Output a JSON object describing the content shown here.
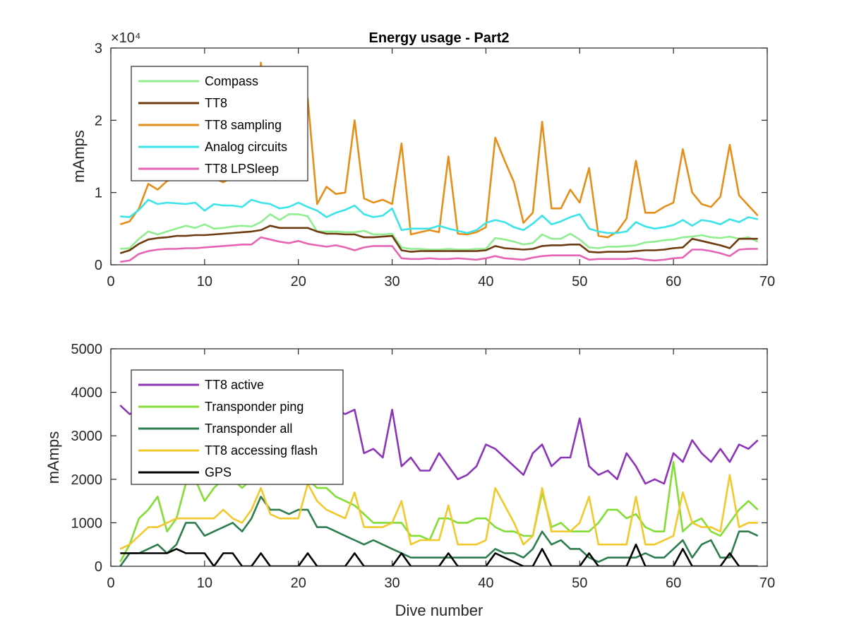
{
  "chart_data": [
    {
      "type": "line",
      "title": "Energy usage - Part2",
      "xlabel": "",
      "ylabel": "mAmps",
      "xlim": [
        0,
        70
      ],
      "ylim": [
        0,
        30000
      ],
      "exponent_label": "×10⁴",
      "xticks": [
        0,
        10,
        20,
        30,
        40,
        50,
        60,
        70
      ],
      "yticks": [
        0,
        10000,
        20000,
        30000
      ],
      "ytick_labels": [
        "0",
        "1",
        "2",
        "3"
      ],
      "grid": false,
      "legend_position": "top-left",
      "x": [
        1,
        2,
        3,
        4,
        5,
        6,
        7,
        8,
        9,
        10,
        11,
        12,
        13,
        14,
        15,
        16,
        17,
        18,
        19,
        20,
        21,
        22,
        23,
        24,
        25,
        26,
        27,
        28,
        29,
        30,
        31,
        32,
        33,
        34,
        35,
        36,
        37,
        38,
        39,
        40,
        41,
        42,
        43,
        44,
        45,
        46,
        47,
        48,
        49,
        50,
        51,
        52,
        53,
        54,
        55,
        56,
        57,
        58,
        59,
        60,
        61,
        62,
        63,
        64,
        65,
        66,
        67,
        68,
        69
      ],
      "series": [
        {
          "name": "Compass",
          "color": "#90ee90",
          "values": [
            2200,
            2300,
            3600,
            4600,
            4200,
            4600,
            5000,
            5400,
            5100,
            5600,
            5000,
            5100,
            5300,
            5400,
            5300,
            5900,
            7000,
            6200,
            7000,
            7000,
            6700,
            4600,
            4600,
            4600,
            4500,
            4500,
            4700,
            4200,
            4200,
            4300,
            2400,
            2200,
            2200,
            2100,
            2100,
            2200,
            2100,
            2100,
            2200,
            2200,
            3700,
            3500,
            3200,
            2800,
            3000,
            4200,
            3600,
            3600,
            4300,
            3500,
            2400,
            2300,
            2500,
            2500,
            2600,
            2700,
            3100,
            3200,
            3400,
            3500,
            3800,
            3900,
            4100,
            3800,
            3700,
            3900,
            3600,
            3800,
            3200
          ]
        },
        {
          "name": "TT8",
          "color": "#6e3b10",
          "values": [
            1600,
            2000,
            2900,
            3500,
            3700,
            3800,
            4000,
            4000,
            4100,
            4100,
            4200,
            4300,
            4400,
            4500,
            4600,
            4800,
            5400,
            5100,
            5100,
            5100,
            5100,
            4600,
            4300,
            4300,
            4200,
            4200,
            3800,
            3800,
            3900,
            4000,
            2000,
            1800,
            1900,
            1900,
            1900,
            1900,
            1900,
            1900,
            1900,
            2000,
            2600,
            2300,
            2200,
            2100,
            2200,
            2600,
            2700,
            2700,
            2800,
            2800,
            1800,
            1700,
            1800,
            1800,
            1800,
            1900,
            2000,
            2000,
            2100,
            2300,
            2400,
            3600,
            3300,
            3000,
            2700,
            2300,
            3600,
            3600,
            3600
          ]
        },
        {
          "name": "TT8 sampling",
          "color": "#e58e1a",
          "values": [
            5600,
            6000,
            7800,
            11200,
            10400,
            11600,
            12000,
            13200,
            12800,
            13000,
            12000,
            11400,
            12200,
            13000,
            12400,
            28000,
            16400,
            14800,
            15400,
            16000,
            23000,
            8400,
            10800,
            9800,
            10000,
            20000,
            9200,
            8600,
            9000,
            8400,
            16800,
            4200,
            4500,
            4800,
            4500,
            15000,
            4300,
            4200,
            4500,
            5200,
            17600,
            14400,
            11400,
            5800,
            7200,
            19800,
            7800,
            7800,
            10400,
            8600,
            13400,
            4000,
            3800,
            4600,
            6400,
            14400,
            7200,
            7200,
            8000,
            8600,
            16000,
            10000,
            8400,
            8000,
            9400,
            16600,
            9600,
            8200,
            6800
          ]
        },
        {
          "name": "Analog circuits",
          "color": "#3ce3e9",
          "values": [
            6700,
            6600,
            7600,
            9000,
            8400,
            8600,
            8500,
            8400,
            8600,
            7500,
            8400,
            8200,
            8200,
            8000,
            9000,
            8600,
            8400,
            7800,
            8000,
            8600,
            8000,
            7500,
            6600,
            7200,
            7600,
            8200,
            7000,
            6600,
            6800,
            7800,
            4800,
            5000,
            5000,
            5000,
            5400,
            5000,
            4700,
            4400,
            4800,
            5800,
            6200,
            5900,
            5200,
            4800,
            5700,
            6800,
            5600,
            6000,
            6600,
            7000,
            5000,
            4600,
            4400,
            4400,
            4600,
            5900,
            5300,
            5000,
            5200,
            5500,
            6200,
            5400,
            6200,
            6000,
            5600,
            6300,
            5900,
            6600,
            6300
          ]
        },
        {
          "name": "TT8 LPSleep",
          "color": "#e565b4",
          "values": [
            400,
            600,
            1500,
            1900,
            2100,
            2200,
            2200,
            2300,
            2300,
            2400,
            2500,
            2600,
            2700,
            2800,
            2800,
            3800,
            3500,
            3200,
            3000,
            3300,
            2900,
            2700,
            2500,
            2700,
            2400,
            2000,
            2400,
            2600,
            2600,
            2600,
            900,
            800,
            800,
            900,
            800,
            800,
            900,
            800,
            700,
            900,
            1200,
            900,
            800,
            700,
            1000,
            1200,
            1300,
            1300,
            1300,
            1300,
            700,
            800,
            800,
            800,
            800,
            900,
            700,
            600,
            700,
            900,
            1000,
            2100,
            2100,
            1900,
            1600,
            1200,
            2100,
            2200,
            2200
          ]
        }
      ]
    },
    {
      "type": "line",
      "title": "",
      "xlabel": "Dive number",
      "ylabel": "mAmps",
      "xlim": [
        0,
        70
      ],
      "ylim": [
        0,
        5000
      ],
      "xticks": [
        0,
        10,
        20,
        30,
        40,
        50,
        60,
        70
      ],
      "yticks": [
        0,
        1000,
        2000,
        3000,
        4000,
        5000
      ],
      "ytick_labels": [
        "0",
        "1000",
        "2000",
        "3000",
        "4000",
        "5000"
      ],
      "grid": false,
      "legend_position": "top-left",
      "x": [
        1,
        2,
        3,
        4,
        5,
        6,
        7,
        8,
        9,
        10,
        11,
        12,
        13,
        14,
        15,
        16,
        17,
        18,
        19,
        20,
        21,
        22,
        23,
        24,
        25,
        26,
        27,
        28,
        29,
        30,
        31,
        32,
        33,
        34,
        35,
        36,
        37,
        38,
        39,
        40,
        41,
        42,
        43,
        44,
        45,
        46,
        47,
        48,
        49,
        50,
        51,
        52,
        53,
        54,
        55,
        56,
        57,
        58,
        59,
        60,
        61,
        62,
        63,
        64,
        65,
        66,
        67,
        68,
        69
      ],
      "series": [
        {
          "name": "TT8 active",
          "color": "#8c35b8",
          "values": [
            3700,
            3500,
            3600,
            3700,
            3600,
            3700,
            3500,
            3400,
            3500,
            3300,
            3400,
            3400,
            3500,
            3600,
            3500,
            4000,
            3700,
            3500,
            3600,
            3400,
            3500,
            3400,
            3500,
            3600,
            3500,
            3600,
            2600,
            2700,
            2500,
            3600,
            2300,
            2500,
            2200,
            2200,
            2600,
            2300,
            2000,
            2100,
            2300,
            2800,
            2700,
            2500,
            2300,
            2100,
            2600,
            2800,
            2300,
            2500,
            2500,
            3400,
            2300,
            2100,
            2200,
            2000,
            2600,
            2300,
            1900,
            2000,
            1900,
            2600,
            2400,
            2900,
            2600,
            2400,
            2700,
            2400,
            2800,
            2700,
            2900
          ]
        },
        {
          "name": "Transponder ping",
          "color": "#82dd35",
          "values": [
            100,
            500,
            1100,
            1300,
            1600,
            800,
            1100,
            1900,
            2000,
            1500,
            1800,
            2000,
            2000,
            1800,
            2000,
            2000,
            2000,
            1900,
            2000,
            2000,
            2000,
            1800,
            1800,
            1600,
            1500,
            1400,
            1200,
            1000,
            1000,
            1000,
            1000,
            700,
            700,
            600,
            1100,
            1100,
            1000,
            1000,
            1100,
            1100,
            900,
            800,
            800,
            700,
            700,
            1700,
            900,
            1000,
            800,
            800,
            800,
            1000,
            1300,
            1300,
            1100,
            1200,
            900,
            800,
            800,
            2400,
            800,
            1000,
            1100,
            800,
            700,
            1000,
            1300,
            1500,
            1300
          ]
        },
        {
          "name": "Transponder all",
          "color": "#2e7d4f",
          "values": [
            0,
            300,
            300,
            400,
            500,
            300,
            500,
            1000,
            1000,
            700,
            800,
            900,
            1000,
            800,
            1100,
            1600,
            1300,
            1300,
            1200,
            1300,
            1300,
            900,
            900,
            800,
            700,
            600,
            500,
            600,
            500,
            400,
            300,
            200,
            200,
            200,
            200,
            200,
            200,
            200,
            200,
            200,
            400,
            300,
            300,
            200,
            400,
            800,
            500,
            600,
            400,
            400,
            200,
            100,
            200,
            200,
            200,
            200,
            300,
            200,
            200,
            400,
            600,
            200,
            500,
            600,
            200,
            200,
            800,
            800,
            700
          ]
        },
        {
          "name": "TT8 accessing flash",
          "color": "#f1c92c",
          "values": [
            400,
            500,
            700,
            900,
            900,
            1000,
            1100,
            1100,
            1100,
            1100,
            1100,
            1300,
            1100,
            1000,
            1300,
            1800,
            1200,
            1100,
            1100,
            1100,
            1900,
            1500,
            1300,
            1200,
            1100,
            1700,
            900,
            900,
            900,
            1000,
            1500,
            500,
            600,
            600,
            600,
            1400,
            500,
            500,
            500,
            600,
            1800,
            1400,
            1000,
            500,
            700,
            1800,
            800,
            800,
            800,
            1000,
            1600,
            500,
            500,
            500,
            500,
            1600,
            500,
            500,
            600,
            700,
            1700,
            1000,
            900,
            900,
            800,
            2100,
            900,
            1000,
            1000
          ]
        },
        {
          "name": "GPS",
          "color": "#000000",
          "values": [
            300,
            300,
            300,
            300,
            300,
            300,
            400,
            300,
            300,
            300,
            0,
            300,
            300,
            0,
            0,
            300,
            0,
            0,
            0,
            0,
            300,
            0,
            0,
            0,
            0,
            300,
            0,
            0,
            0,
            0,
            300,
            0,
            0,
            0,
            0,
            300,
            0,
            0,
            0,
            0,
            300,
            200,
            100,
            0,
            0,
            400,
            0,
            0,
            0,
            0,
            300,
            0,
            0,
            0,
            0,
            500,
            0,
            0,
            0,
            0,
            400,
            0,
            0,
            0,
            0,
            300,
            0,
            0,
            0
          ]
        }
      ]
    }
  ]
}
